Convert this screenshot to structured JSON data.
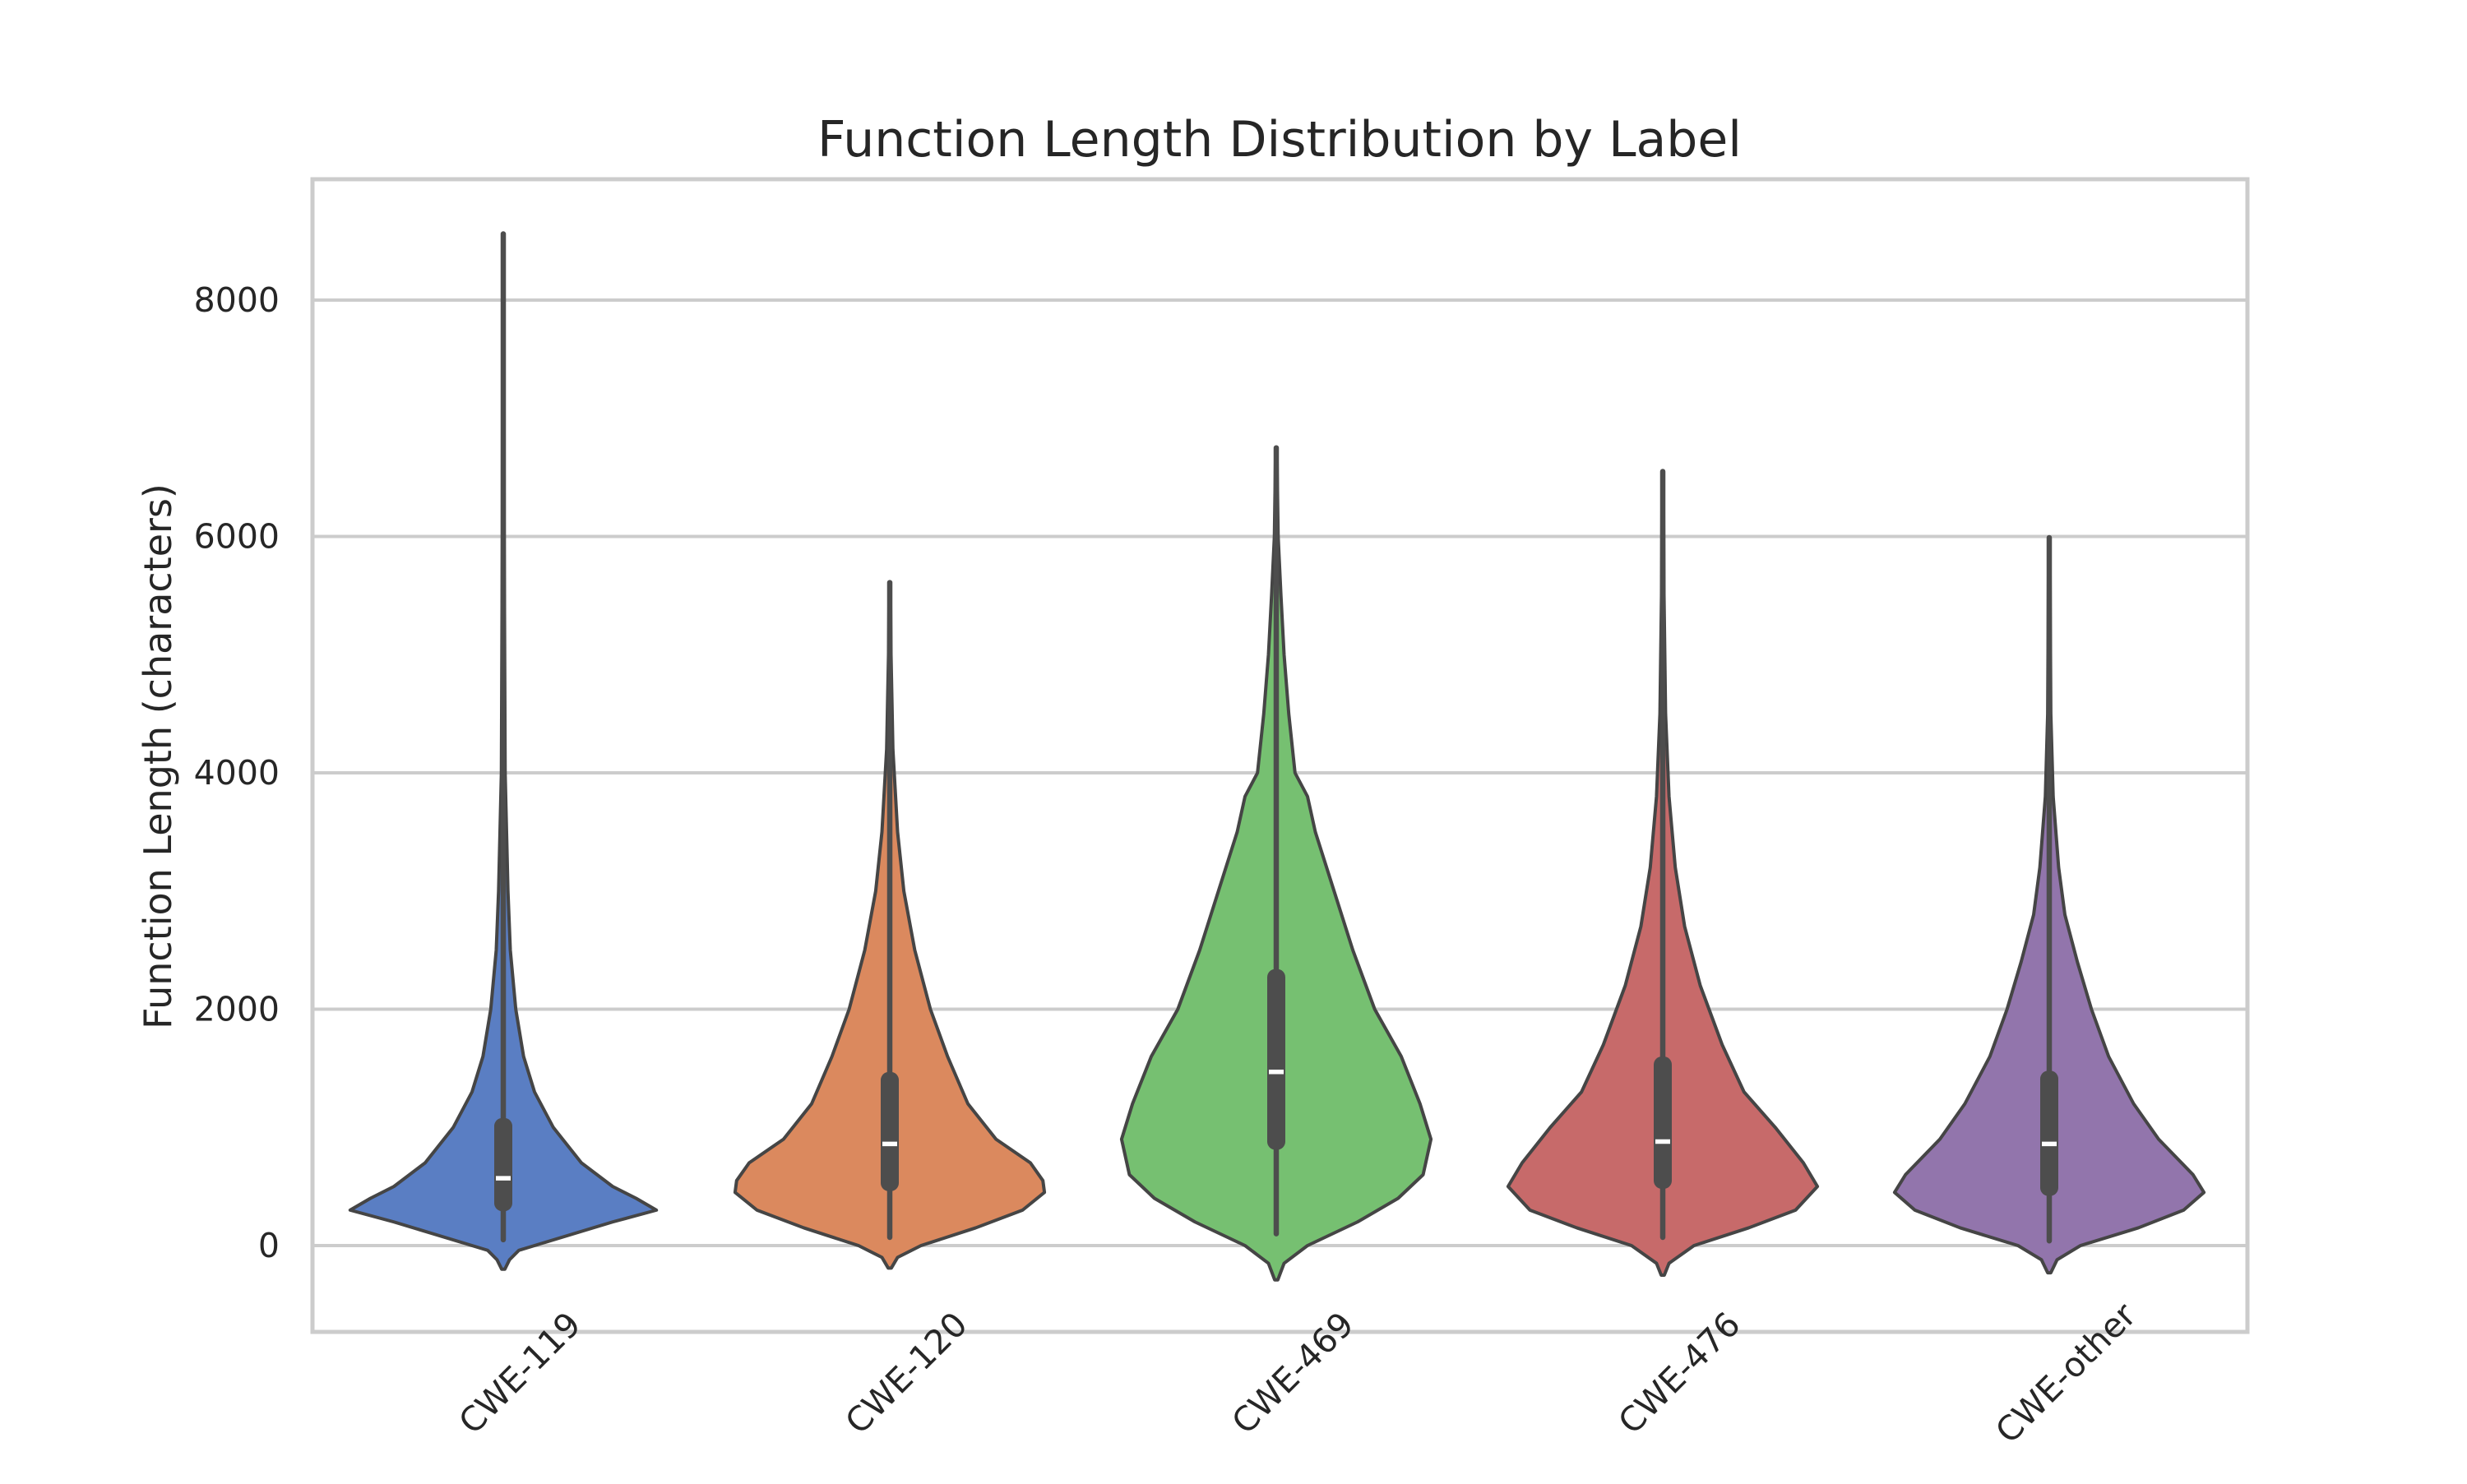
{
  "chart_data": {
    "type": "violin",
    "title": "Function Length Distribution by Label",
    "xlabel": "",
    "ylabel": "Function Length (characters)",
    "ylim": [
      -730,
      9000
    ],
    "yticks": [
      0,
      2000,
      4000,
      6000,
      8000
    ],
    "grid": true,
    "categories": [
      "CWE-119",
      "CWE-120",
      "CWE-469",
      "CWE-476",
      "CWE-other"
    ],
    "colors": [
      "#5a7ec3",
      "#db895e",
      "#76c071",
      "#c76a6a",
      "#9275ac"
    ],
    "series": [
      {
        "category": "CWE-119",
        "min": 50,
        "q1": 290,
        "median": 570,
        "q3": 1080,
        "max": 8560,
        "whisker_low": 50,
        "whisker_high": 2130,
        "profile": [
          [
            -200,
            0.01
          ],
          [
            -120,
            0.04
          ],
          [
            -40,
            0.1
          ],
          [
            0,
            0.2
          ],
          [
            100,
            0.45
          ],
          [
            200,
            0.7
          ],
          [
            300,
            0.98
          ],
          [
            400,
            0.85
          ],
          [
            500,
            0.7
          ],
          [
            700,
            0.5
          ],
          [
            1000,
            0.32
          ],
          [
            1300,
            0.2
          ],
          [
            1600,
            0.13
          ],
          [
            2000,
            0.08
          ],
          [
            2500,
            0.045
          ],
          [
            3000,
            0.03
          ],
          [
            4000,
            0.012
          ],
          [
            6000,
            0.006
          ],
          [
            8560,
            0.004
          ]
        ]
      },
      {
        "category": "CWE-120",
        "min": 70,
        "q1": 460,
        "median": 860,
        "q3": 1470,
        "max": 5610,
        "whisker_low": 70,
        "whisker_high": 2830,
        "profile": [
          [
            -190,
            0.01
          ],
          [
            -100,
            0.05
          ],
          [
            0,
            0.2
          ],
          [
            150,
            0.55
          ],
          [
            300,
            0.85
          ],
          [
            450,
            0.99
          ],
          [
            550,
            0.98
          ],
          [
            700,
            0.9
          ],
          [
            900,
            0.68
          ],
          [
            1200,
            0.5
          ],
          [
            1600,
            0.37
          ],
          [
            2000,
            0.26
          ],
          [
            2500,
            0.16
          ],
          [
            3000,
            0.09
          ],
          [
            3500,
            0.05
          ],
          [
            4200,
            0.02
          ],
          [
            5000,
            0.008
          ],
          [
            5610,
            0.004
          ]
        ]
      },
      {
        "category": "CWE-469",
        "min": 100,
        "q1": 810,
        "median": 1470,
        "q3": 2340,
        "max": 6750,
        "whisker_low": 100,
        "whisker_high": 4530,
        "profile": [
          [
            -290,
            0.01
          ],
          [
            -150,
            0.05
          ],
          [
            0,
            0.2
          ],
          [
            200,
            0.52
          ],
          [
            400,
            0.78
          ],
          [
            600,
            0.94
          ],
          [
            900,
            0.99
          ],
          [
            1200,
            0.92
          ],
          [
            1600,
            0.8
          ],
          [
            2000,
            0.63
          ],
          [
            2500,
            0.49
          ],
          [
            3000,
            0.37
          ],
          [
            3500,
            0.25
          ],
          [
            3800,
            0.2
          ],
          [
            4000,
            0.12
          ],
          [
            4500,
            0.08
          ],
          [
            5000,
            0.05
          ],
          [
            5500,
            0.03
          ],
          [
            6000,
            0.012
          ],
          [
            6750,
            0.004
          ]
        ]
      },
      {
        "category": "CWE-476",
        "min": 70,
        "q1": 480,
        "median": 880,
        "q3": 1600,
        "max": 6550,
        "whisker_low": 70,
        "whisker_high": 3180,
        "profile": [
          [
            -250,
            0.01
          ],
          [
            -150,
            0.04
          ],
          [
            0,
            0.2
          ],
          [
            150,
            0.55
          ],
          [
            300,
            0.85
          ],
          [
            500,
            0.99
          ],
          [
            700,
            0.9
          ],
          [
            1000,
            0.72
          ],
          [
            1300,
            0.52
          ],
          [
            1700,
            0.38
          ],
          [
            2200,
            0.24
          ],
          [
            2700,
            0.14
          ],
          [
            3200,
            0.08
          ],
          [
            3800,
            0.04
          ],
          [
            4500,
            0.018
          ],
          [
            5500,
            0.008
          ],
          [
            6550,
            0.004
          ]
        ]
      },
      {
        "category": "CWE-other",
        "min": 40,
        "q1": 420,
        "median": 860,
        "q3": 1480,
        "max": 5990,
        "whisker_low": 40,
        "whisker_high": 2910,
        "profile": [
          [
            -230,
            0.01
          ],
          [
            -120,
            0.05
          ],
          [
            0,
            0.2
          ],
          [
            150,
            0.57
          ],
          [
            300,
            0.86
          ],
          [
            450,
            0.99
          ],
          [
            600,
            0.92
          ],
          [
            900,
            0.7
          ],
          [
            1200,
            0.54
          ],
          [
            1600,
            0.38
          ],
          [
            2000,
            0.27
          ],
          [
            2400,
            0.18
          ],
          [
            2800,
            0.1
          ],
          [
            3200,
            0.06
          ],
          [
            3800,
            0.025
          ],
          [
            4500,
            0.01
          ],
          [
            5990,
            0.004
          ]
        ]
      }
    ]
  }
}
